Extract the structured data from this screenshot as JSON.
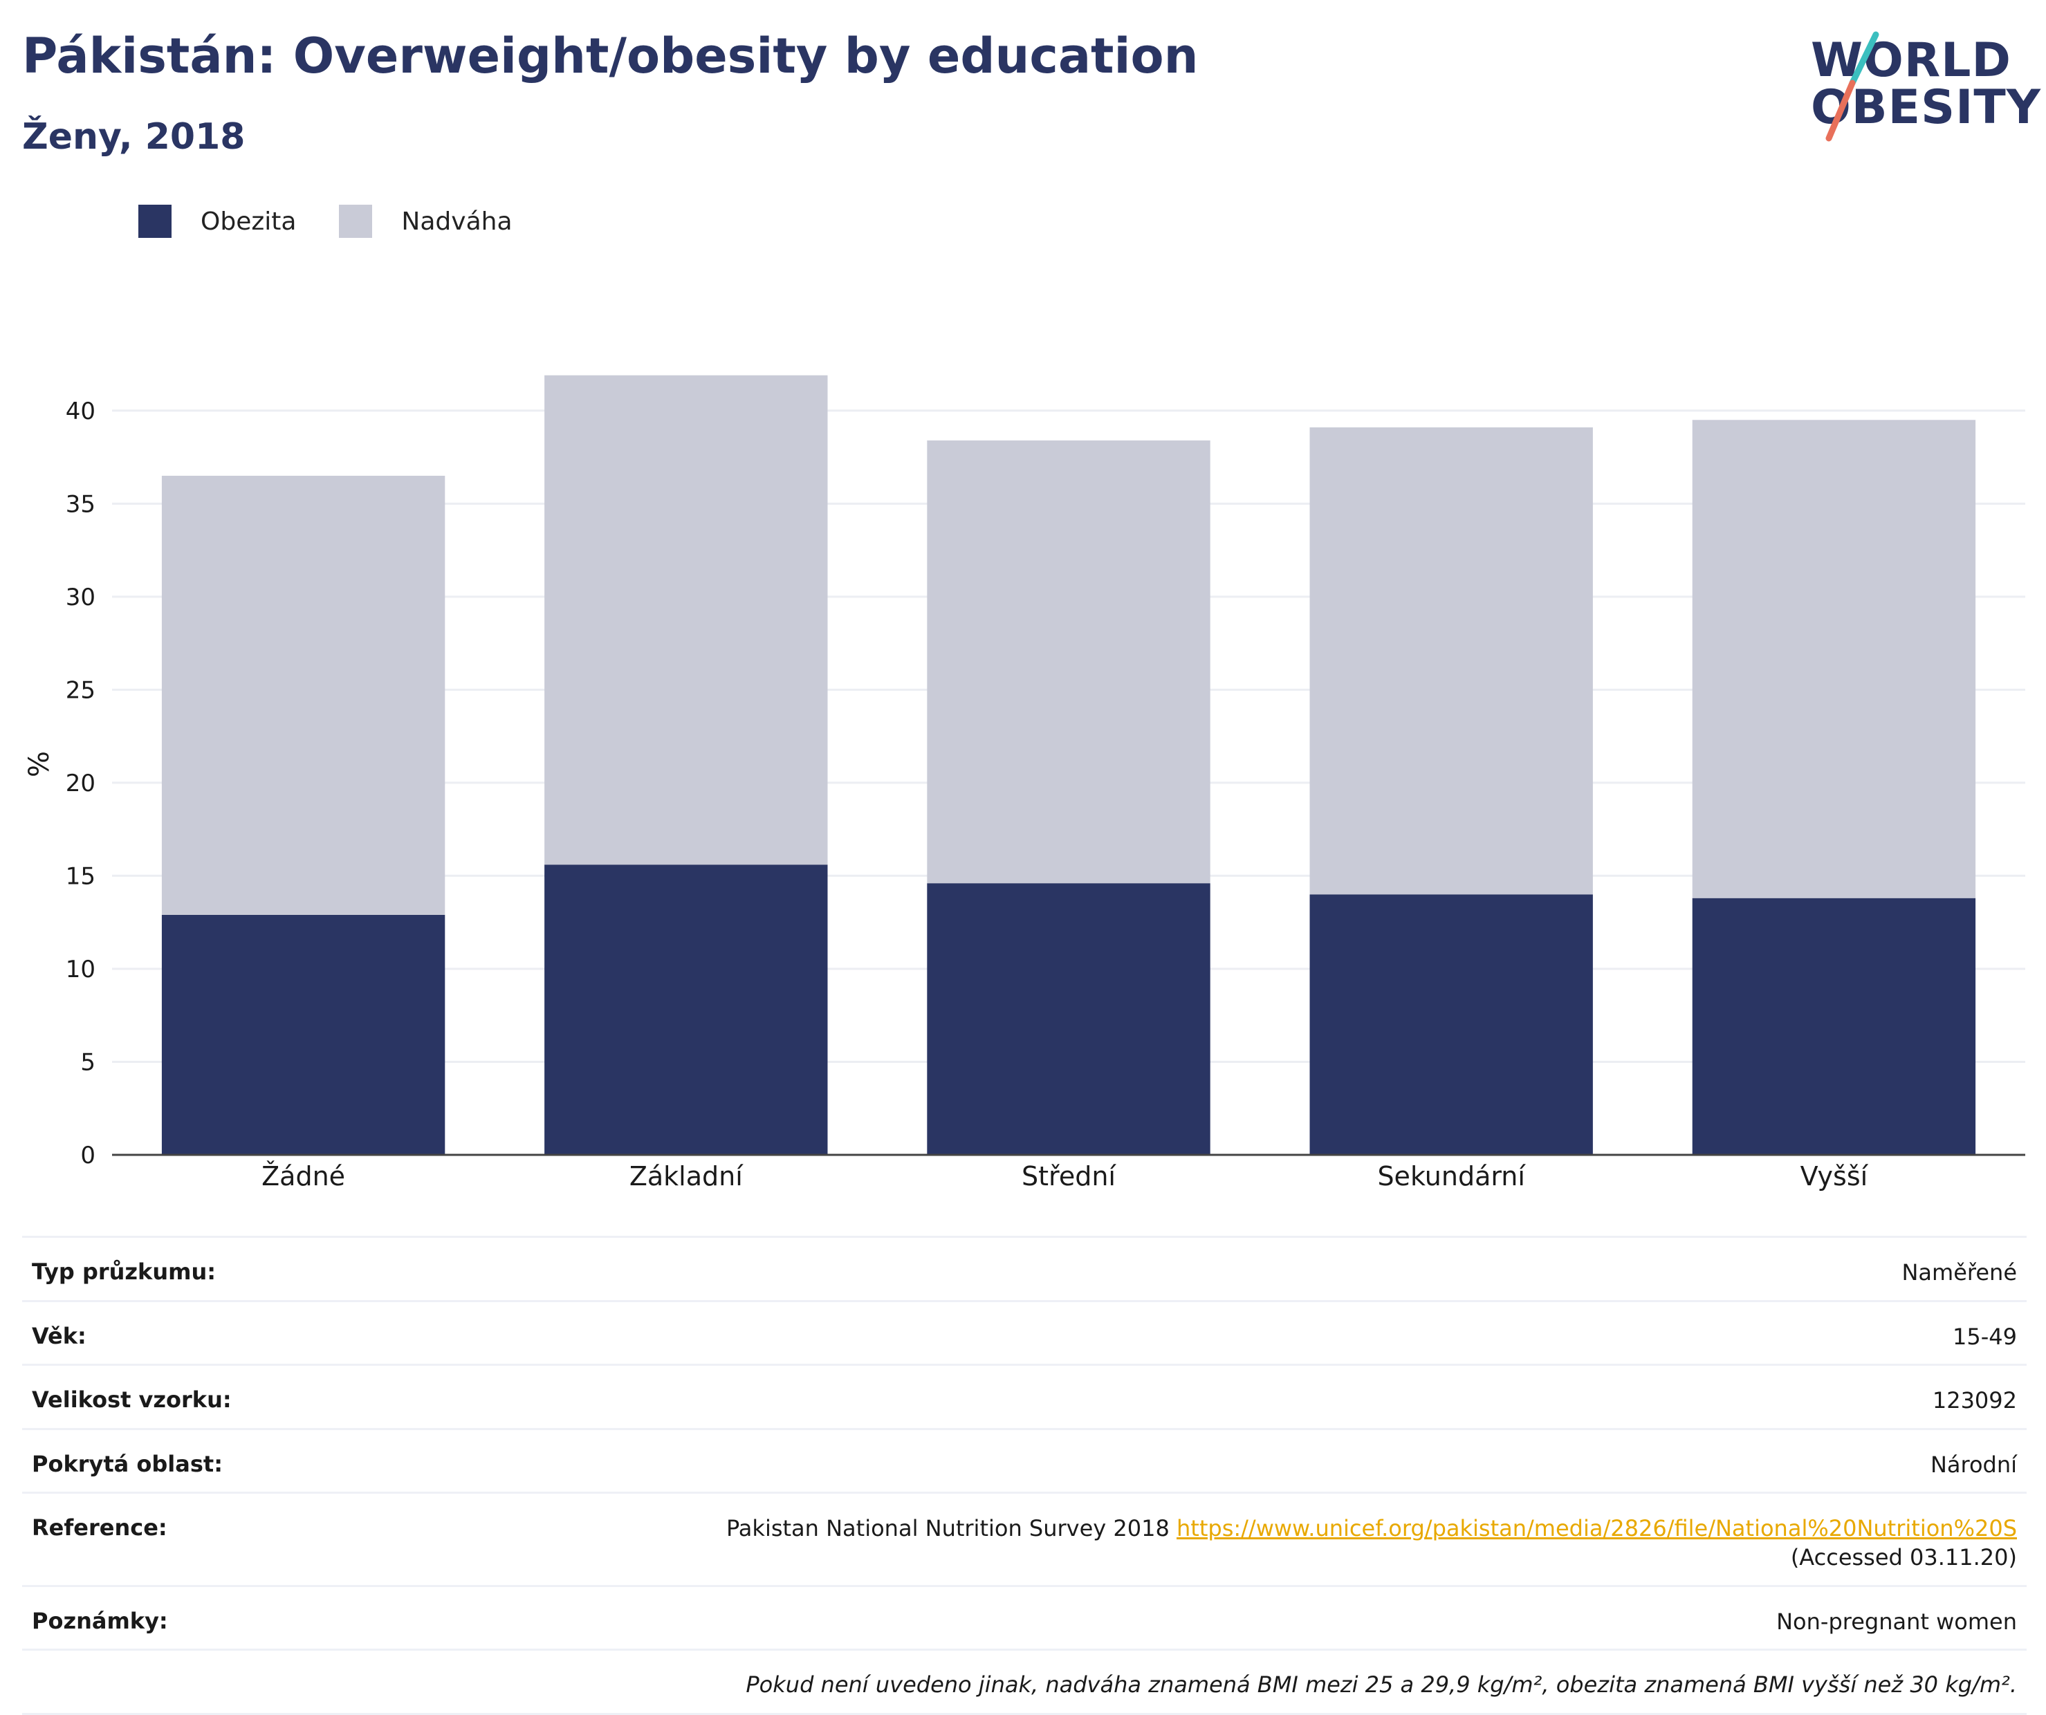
{
  "header": {
    "title": "Pákistán: Overweight/obesity by education",
    "subtitle": "Ženy, 2018"
  },
  "logo": {
    "line1": "WORLD",
    "line2": "OBESITY"
  },
  "legend": [
    {
      "label": "Obezita",
      "color": "#2a3563"
    },
    {
      "label": "Nadváha",
      "color": "#c9cbd7"
    }
  ],
  "chart_data": {
    "type": "bar",
    "stacked": true,
    "categories": [
      "Žádné",
      "Základní",
      "Střední",
      "Sekundární",
      "Vyšší"
    ],
    "series": [
      {
        "name": "Obezita",
        "values": [
          12.9,
          15.6,
          14.6,
          14.0,
          13.8
        ],
        "color": "#2a3563"
      },
      {
        "name": "Nadváha",
        "values": [
          23.6,
          26.3,
          23.8,
          25.1,
          25.7
        ],
        "color": "#c9cbd7"
      }
    ],
    "ylabel": "%",
    "ylim": [
      0,
      42
    ],
    "yticks": [
      0,
      5,
      10,
      15,
      20,
      25,
      30,
      35,
      40
    ],
    "grid": true,
    "legend_position": "top-left"
  },
  "info": {
    "rows": [
      {
        "key": "Typ průzkumu:",
        "value": "Naměřené"
      },
      {
        "key": "Věk:",
        "value": "15-49"
      },
      {
        "key": "Velikost vzorku:",
        "value": "123092"
      },
      {
        "key": "Pokrytá oblast:",
        "value": "Národní"
      }
    ],
    "reference": {
      "key": "Reference:",
      "text_before": "Pakistan National Nutrition Survey 2018 ",
      "link": "https://www.unicef.org/pakistan/media/2826/file/National%20Nutrition%20S",
      "text_after": " (Accessed 03.11.20)"
    },
    "notes": {
      "key": "Poznámky:",
      "value": "Non-pregnant women"
    },
    "footnote": "Pokud není uvedeno jinak, nadváha znamená BMI mezi 25 a 29,9 kg/m², obezita znamená BMI vyšší než 30 kg/m²."
  }
}
